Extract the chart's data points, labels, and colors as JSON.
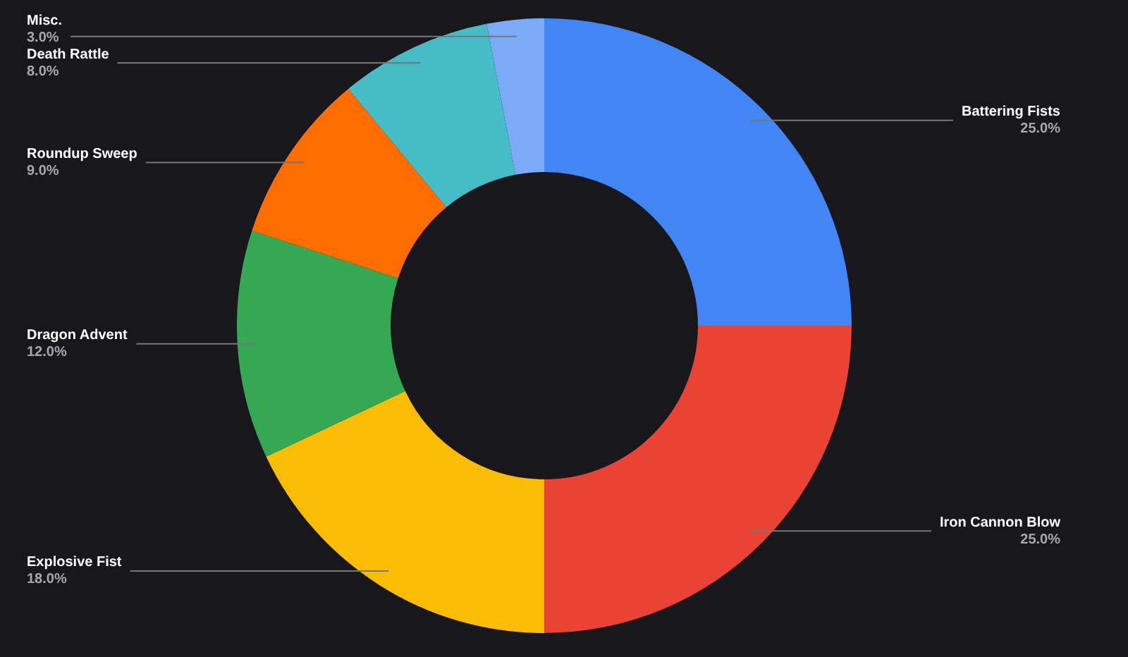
{
  "chart_data": {
    "type": "donut",
    "categories": [
      "Battering Fists",
      "Iron Cannon Blow",
      "Explosive Fist",
      "Dragon Advent",
      "Roundup Sweep",
      "Death Rattle",
      "Misc."
    ],
    "values": [
      25,
      25,
      18,
      12,
      9,
      8,
      3
    ],
    "colors": [
      "#4285f4",
      "#ea4335",
      "#fbbc04",
      "#34a853",
      "#ff6d01",
      "#46bdc6",
      "#7baaf7"
    ],
    "value_labels": [
      "25.0%",
      "25.0%",
      "18.0%",
      "12.0%",
      "9.0%",
      "8.0%",
      "3.0%"
    ]
  }
}
